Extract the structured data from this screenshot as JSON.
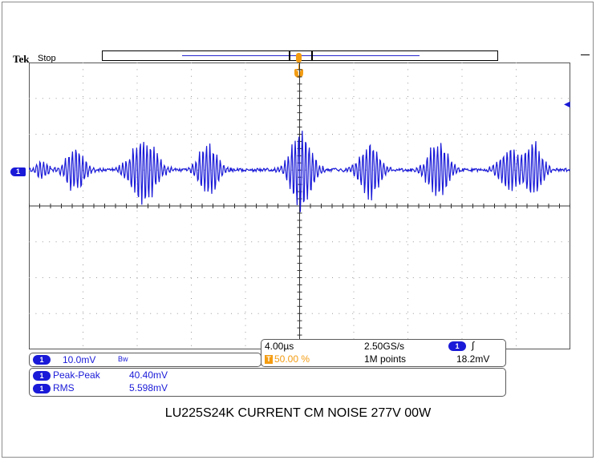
{
  "header": {
    "brand": "Tek",
    "acq_state": "Stop",
    "trigger_position_marker": "T"
  },
  "display": {
    "channel_marker": "1",
    "trigger_level_arrow": "◀",
    "grid": "on",
    "waveform_color": "#1a1ad8",
    "trigger_color": "#f39c12"
  },
  "channel_readout": {
    "channel": "1",
    "scale": "10.0mV",
    "bandwidth_limit_icon": "Bw"
  },
  "horizontal_readout": {
    "time_per_div": "4.00µs",
    "sample_rate": "2.50GS/s",
    "trigger_position": "50.00 %",
    "record_length": "1M points",
    "trigger_source": "1",
    "trigger_slope_icon": "rising-edge",
    "trigger_slope_glyph": "∫",
    "trigger_level": "18.2mV"
  },
  "measurements": [
    {
      "channel": "1",
      "name": "Peak-Peak",
      "value": "40.40mV"
    },
    {
      "channel": "1",
      "name": "RMS",
      "value": "5.598mV"
    }
  ],
  "caption": "LU225S24K CURRENT CM NOISE 277V 00W"
}
